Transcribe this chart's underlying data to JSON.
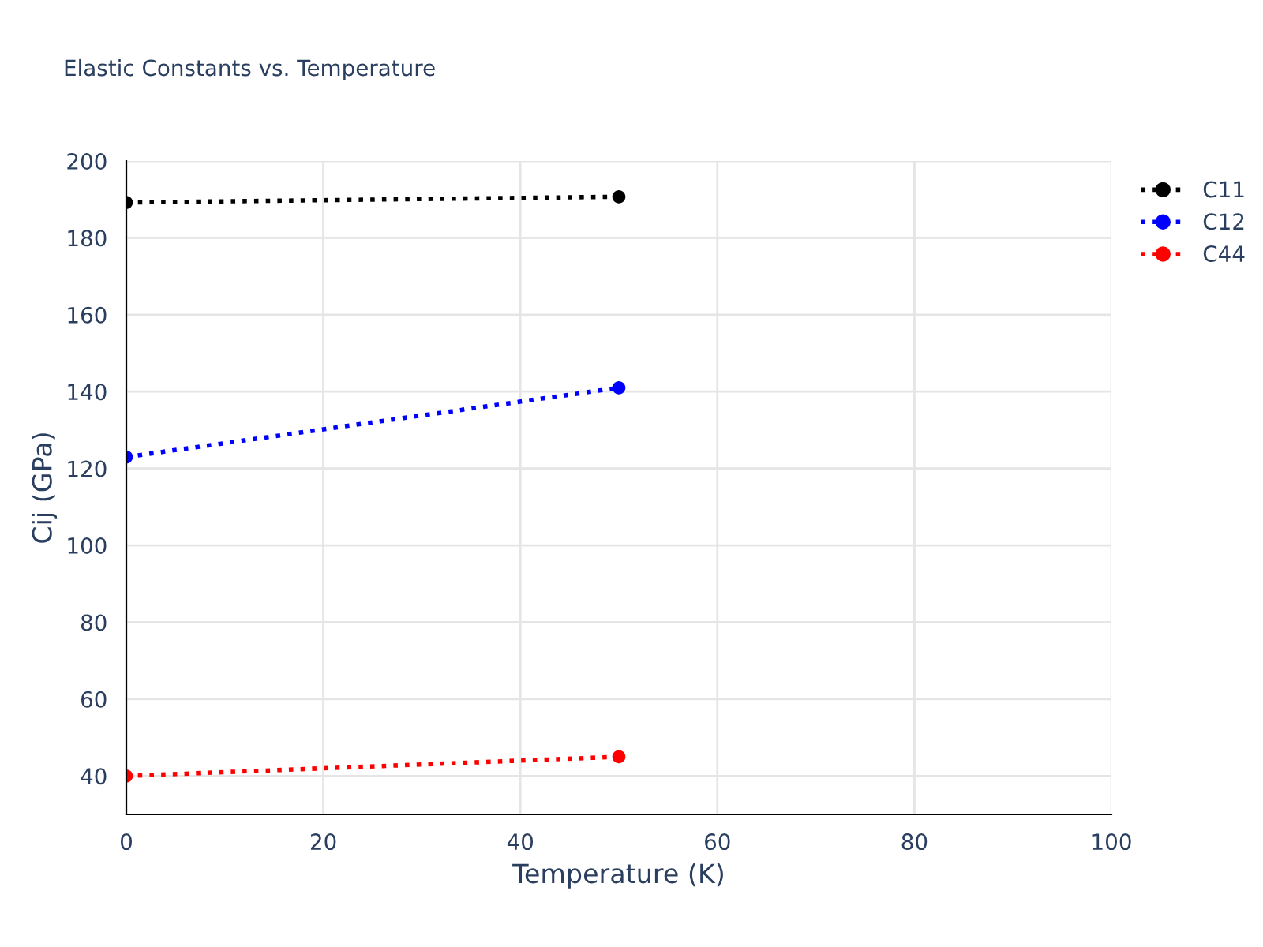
{
  "chart_data": {
    "type": "line",
    "title": "Elastic Constants vs. Temperature",
    "xlabel": "Temperature (K)",
    "ylabel": "Cij (GPa)",
    "x": [
      0,
      50
    ],
    "series": [
      {
        "name": "C11",
        "color": "#000000",
        "values": [
          189.2,
          190.7
        ]
      },
      {
        "name": "C12",
        "color": "#0000ff",
        "values": [
          123,
          141
        ]
      },
      {
        "name": "C44",
        "color": "#ff0000",
        "values": [
          40,
          45
        ]
      }
    ],
    "xlim": [
      0,
      100
    ],
    "xticks": [
      0,
      20,
      40,
      60,
      80,
      100
    ],
    "ylim": [
      30,
      200
    ],
    "yticks": [
      40,
      60,
      80,
      100,
      120,
      140,
      160,
      180,
      200
    ],
    "grid": true,
    "legend": "top right",
    "marker": "circle",
    "line_style": "dotted"
  }
}
